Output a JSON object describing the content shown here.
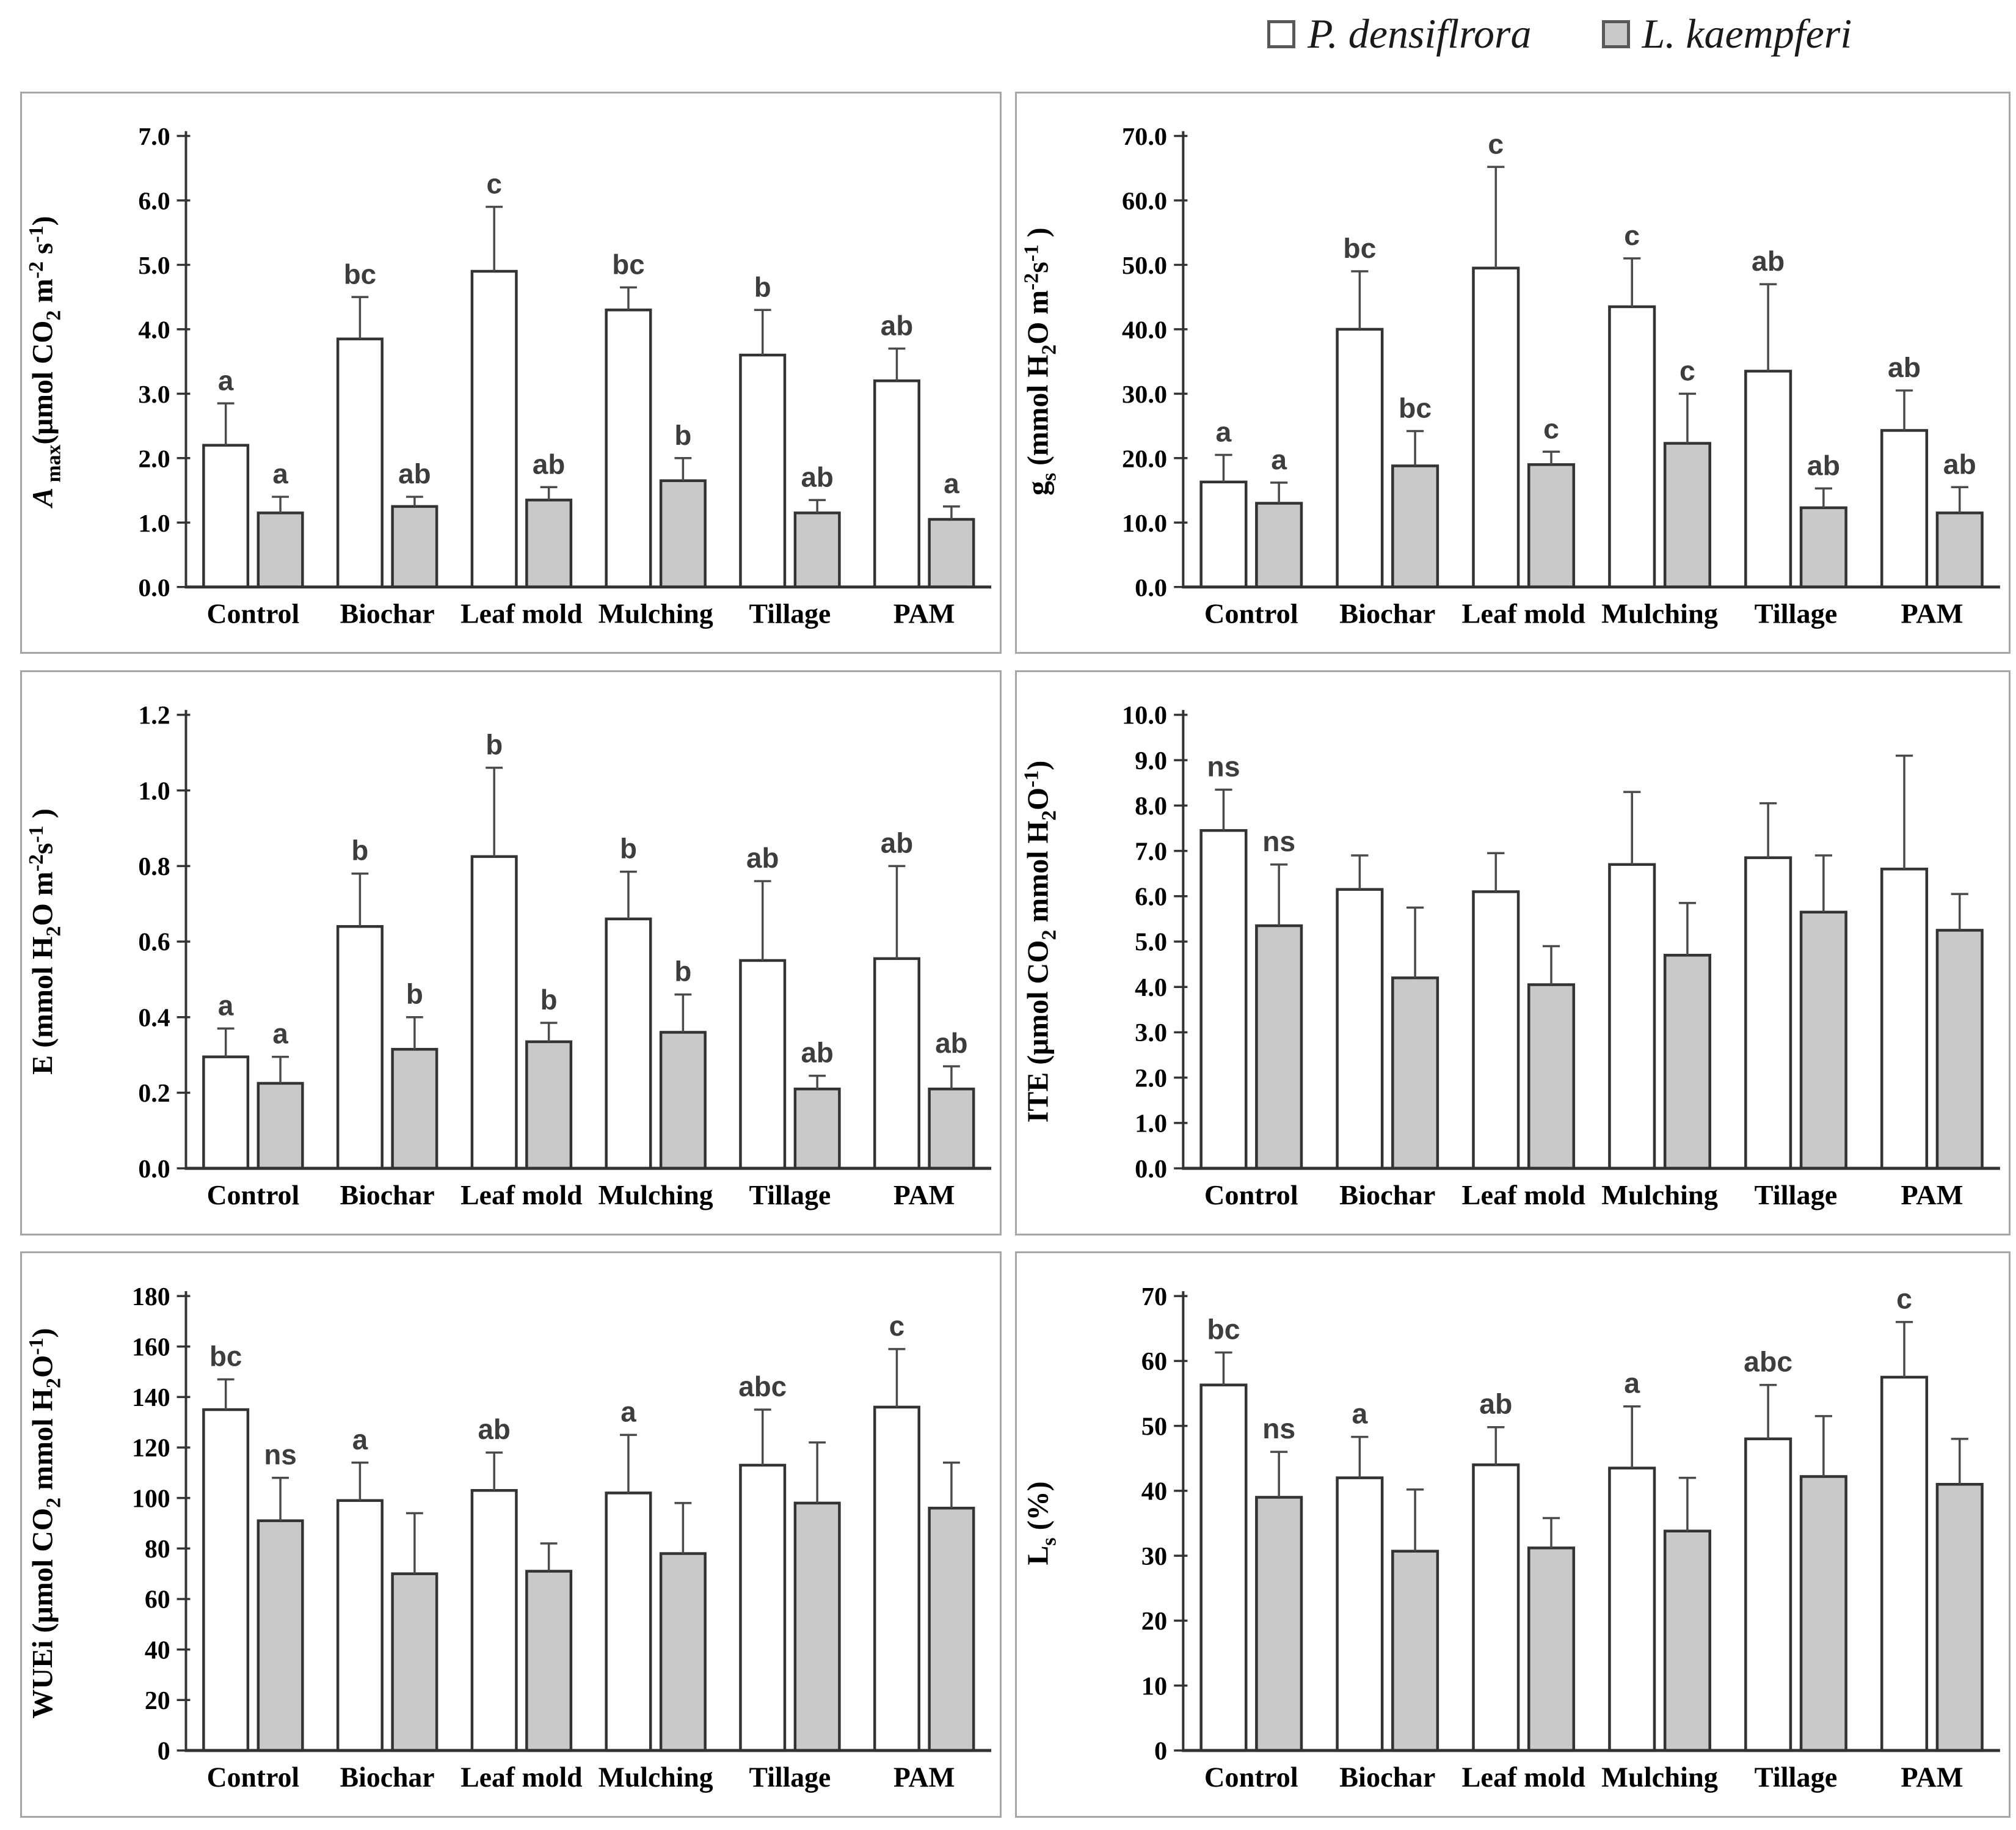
{
  "legend": {
    "series": [
      {
        "label": "P. densiflrora",
        "fill": "#ffffff"
      },
      {
        "label": "L. kaempferi",
        "fill": "#c9c9c9"
      }
    ]
  },
  "colors": {
    "bar_outline": "#333333",
    "gray_fill": "#c9c9c9",
    "white_fill": "#ffffff",
    "error_bar": "#4a4a4a",
    "letter_text": "#3d3d3d",
    "axis": "#333333",
    "panel_border": "#a6a6a6"
  },
  "categories": [
    "Control",
    "Biochar",
    "Leaf mold",
    "Mulching",
    "Tillage",
    "PAM"
  ],
  "chart_data": [
    {
      "type": "bar",
      "key": "amax",
      "title": "",
      "ylabel_plain": "A max(umol CO2 m-2 s-1)",
      "ylabel_segments": [
        {
          "t": "A",
          "i": true
        },
        {
          "t": " max",
          "sub": true
        },
        {
          "t": "(μmol CO"
        },
        {
          "t": "2",
          "sub": true
        },
        {
          "t": " m"
        },
        {
          "t": "-2",
          "sup": true
        },
        {
          "t": " s"
        },
        {
          "t": "-1",
          "sup": true
        },
        {
          "t": ")"
        }
      ],
      "ylim": [
        0,
        7.0
      ],
      "ystep": 1.0,
      "ydecimals": 1,
      "grid": false,
      "legend_position": "top-right-of-figure",
      "categories": [
        "Control",
        "Biochar",
        "Leaf mold",
        "Mulching",
        "Tillage",
        "PAM"
      ],
      "series": [
        {
          "name": "P. densiflrora",
          "values": [
            2.2,
            3.85,
            4.9,
            4.3,
            3.6,
            3.2
          ],
          "errors": [
            0.65,
            0.65,
            1.0,
            0.35,
            0.7,
            0.5
          ],
          "letters": [
            "a",
            "bc",
            "c",
            "bc",
            "b",
            "ab"
          ]
        },
        {
          "name": "L. kaempferi",
          "values": [
            1.15,
            1.25,
            1.35,
            1.65,
            1.15,
            1.05
          ],
          "errors": [
            0.25,
            0.15,
            0.2,
            0.35,
            0.2,
            0.2
          ],
          "letters": [
            "a",
            "ab",
            "ab",
            "b",
            "ab",
            "a"
          ]
        }
      ]
    },
    {
      "type": "bar",
      "key": "gs",
      "title": "",
      "ylabel_plain": "gs (mmol H2O m-2s-1 )",
      "ylabel_segments": [
        {
          "t": "g"
        },
        {
          "t": "s",
          "sub": true
        },
        {
          "t": " (mmol H"
        },
        {
          "t": "2",
          "sub": true
        },
        {
          "t": "O m"
        },
        {
          "t": "-2",
          "sup": true
        },
        {
          "t": "s"
        },
        {
          "t": "-1",
          "sup": true
        },
        {
          "t": " )"
        }
      ],
      "ylim": [
        0,
        70.0
      ],
      "ystep": 10.0,
      "ydecimals": 1,
      "grid": false,
      "categories": [
        "Control",
        "Biochar",
        "Leaf mold",
        "Mulching",
        "Tillage",
        "PAM"
      ],
      "series": [
        {
          "name": "P. densiflrora",
          "values": [
            16.3,
            40.0,
            49.5,
            43.5,
            33.5,
            24.3
          ],
          "errors": [
            4.2,
            9.0,
            15.7,
            7.5,
            13.5,
            6.2
          ],
          "letters": [
            "a",
            "bc",
            "c",
            "c",
            "ab",
            "ab"
          ]
        },
        {
          "name": "L. kaempferi",
          "values": [
            13.0,
            18.8,
            19.0,
            22.3,
            12.3,
            11.5
          ],
          "errors": [
            3.2,
            5.4,
            2.0,
            7.7,
            3.0,
            4.0
          ],
          "letters": [
            "a",
            "bc",
            "c",
            "c",
            "ab",
            "ab"
          ]
        }
      ]
    },
    {
      "type": "bar",
      "key": "e",
      "title": "",
      "ylabel_plain": "E (mmol H2O m-2s-1 )",
      "ylabel_segments": [
        {
          "t": "E (mmol H"
        },
        {
          "t": "2",
          "sub": true
        },
        {
          "t": "O m"
        },
        {
          "t": "-2",
          "sup": true
        },
        {
          "t": "s"
        },
        {
          "t": "-1",
          "sup": true
        },
        {
          "t": " )"
        }
      ],
      "ylim": [
        0,
        1.2
      ],
      "ystep": 0.2,
      "ydecimals": 1,
      "grid": false,
      "categories": [
        "Control",
        "Biochar",
        "Leaf mold",
        "Mulching",
        "Tillage",
        "PAM"
      ],
      "series": [
        {
          "name": "P. densiflrora",
          "values": [
            0.295,
            0.64,
            0.825,
            0.66,
            0.55,
            0.555
          ],
          "errors": [
            0.075,
            0.14,
            0.235,
            0.125,
            0.21,
            0.245
          ],
          "letters": [
            "a",
            "b",
            "b",
            "b",
            "ab",
            "ab"
          ]
        },
        {
          "name": "L. kaempferi",
          "values": [
            0.225,
            0.315,
            0.335,
            0.36,
            0.21,
            0.21
          ],
          "errors": [
            0.07,
            0.085,
            0.05,
            0.1,
            0.035,
            0.06
          ],
          "letters": [
            "a",
            "b",
            "b",
            "b",
            "ab",
            "ab"
          ]
        }
      ]
    },
    {
      "type": "bar",
      "key": "ite",
      "title": "",
      "ylabel_plain": "ITE (umol CO2 mmol H2O-1)",
      "ylabel_segments": [
        {
          "t": "ITE (μmol CO"
        },
        {
          "t": "2",
          "sub": true
        },
        {
          "t": " mmol H"
        },
        {
          "t": "2",
          "sub": true
        },
        {
          "t": "O"
        },
        {
          "t": "-1",
          "sup": true
        },
        {
          "t": ")"
        }
      ],
      "ylim": [
        0,
        10.0
      ],
      "ystep": 1.0,
      "ydecimals": 1,
      "grid": false,
      "categories": [
        "Control",
        "Biochar",
        "Leaf mold",
        "Mulching",
        "Tillage",
        "PAM"
      ],
      "series": [
        {
          "name": "P. densiflrora",
          "values": [
            7.45,
            6.15,
            6.1,
            6.7,
            6.85,
            6.6
          ],
          "errors": [
            0.9,
            0.75,
            0.85,
            1.6,
            1.2,
            2.5
          ],
          "letters": [
            "ns",
            "",
            "",
            "",
            "",
            ""
          ]
        },
        {
          "name": "L. kaempferi",
          "values": [
            5.35,
            4.2,
            4.05,
            4.7,
            5.65,
            5.25
          ],
          "errors": [
            1.35,
            1.55,
            0.85,
            1.15,
            1.25,
            0.8
          ],
          "letters": [
            "ns",
            "",
            "",
            "",
            "",
            ""
          ]
        }
      ]
    },
    {
      "type": "bar",
      "key": "wuei",
      "title": "",
      "ylabel_plain": "WUEi (umol CO2 mmol H2O-1)",
      "ylabel_segments": [
        {
          "t": "WUEi (μmol CO"
        },
        {
          "t": "2",
          "sub": true
        },
        {
          "t": " mmol H"
        },
        {
          "t": "2",
          "sub": true
        },
        {
          "t": "O"
        },
        {
          "t": "-1",
          "sup": true
        },
        {
          "t": ")"
        }
      ],
      "ylim": [
        0,
        180
      ],
      "ystep": 20,
      "ydecimals": 0,
      "grid": false,
      "categories": [
        "Control",
        "Biochar",
        "Leaf mold",
        "Mulching",
        "Tillage",
        "PAM"
      ],
      "series": [
        {
          "name": "P. densiflrora",
          "values": [
            135,
            99,
            103,
            102,
            113,
            136
          ],
          "errors": [
            12,
            15,
            15,
            23,
            22,
            23
          ],
          "letters": [
            "bc",
            "a",
            "ab",
            "a",
            "abc",
            "c"
          ]
        },
        {
          "name": "L. kaempferi",
          "values": [
            91,
            70,
            71,
            78,
            98,
            96
          ],
          "errors": [
            17,
            24,
            11,
            20,
            24,
            18
          ],
          "letters": [
            "ns",
            "",
            "",
            "",
            "",
            ""
          ]
        }
      ]
    },
    {
      "type": "bar",
      "key": "ls",
      "title": "",
      "ylabel_plain": "Ls (%)",
      "ylabel_segments": [
        {
          "t": "L"
        },
        {
          "t": "s",
          "sub": true
        },
        {
          "t": " (%)"
        }
      ],
      "ylim": [
        0,
        70
      ],
      "ystep": 10,
      "ydecimals": 0,
      "grid": false,
      "categories": [
        "Control",
        "Biochar",
        "Leaf mold",
        "Mulching",
        "Tillage",
        "PAM"
      ],
      "series": [
        {
          "name": "P. densiflrora",
          "values": [
            56.3,
            42.0,
            44.0,
            43.5,
            48.0,
            57.5
          ],
          "errors": [
            5.0,
            6.3,
            5.8,
            9.5,
            8.3,
            8.5
          ],
          "letters": [
            "bc",
            "a",
            "ab",
            "a",
            "abc",
            "c"
          ]
        },
        {
          "name": "L. kaempferi",
          "values": [
            39.0,
            30.7,
            31.2,
            33.8,
            42.2,
            41.0
          ],
          "errors": [
            7.0,
            9.5,
            4.6,
            8.2,
            9.3,
            7.0
          ],
          "letters": [
            "ns",
            "",
            "",
            "",
            "",
            ""
          ]
        }
      ]
    }
  ]
}
